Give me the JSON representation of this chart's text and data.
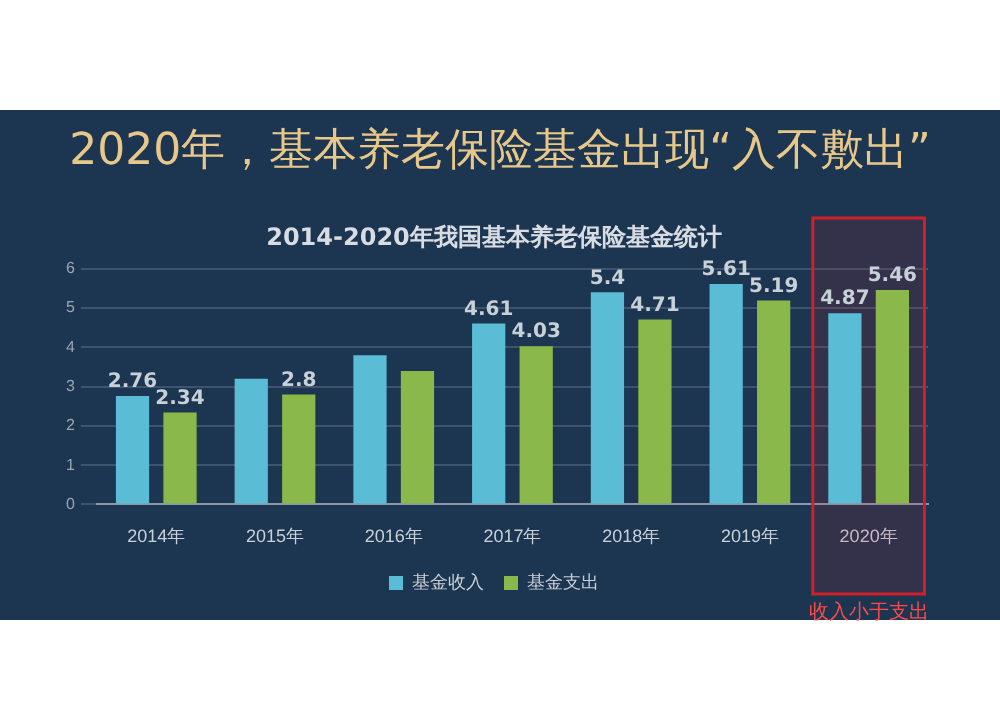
{
  "chart_data": {
    "type": "bar",
    "title": "2020年，基本养老保险基金出现“入不敷出”",
    "subtitle": "2014-2020年我国基本养老保险基金统计",
    "categories": [
      "2014年",
      "2015年",
      "2016年",
      "2017年",
      "2018年",
      "2019年",
      "2020年"
    ],
    "series": [
      {
        "name": "基金收入",
        "color": "#5bbcd6",
        "values": [
          2.76,
          3.2,
          3.8,
          4.61,
          5.4,
          5.61,
          4.87
        ],
        "value_labels": [
          "2.76",
          null,
          null,
          "4.61",
          "5.4",
          "5.61",
          "4.87"
        ]
      },
      {
        "name": "基金支出",
        "color": "#8ab84a",
        "values": [
          2.34,
          2.8,
          3.4,
          4.03,
          4.71,
          5.19,
          5.46
        ],
        "value_labels": [
          "2.34",
          "2.8",
          null,
          "4.03",
          "4.71",
          "5.19",
          "5.46"
        ]
      }
    ],
    "ylim": [
      0,
      6
    ],
    "yticks": [
      0,
      1,
      2,
      3,
      4,
      5,
      6
    ],
    "grid": "y",
    "legend": "bottom",
    "bands": [
      {
        "axis": "x",
        "from": "2020年",
        "to": "2020年",
        "label": "收入小于支出",
        "color": "#d0202a"
      }
    ]
  }
}
